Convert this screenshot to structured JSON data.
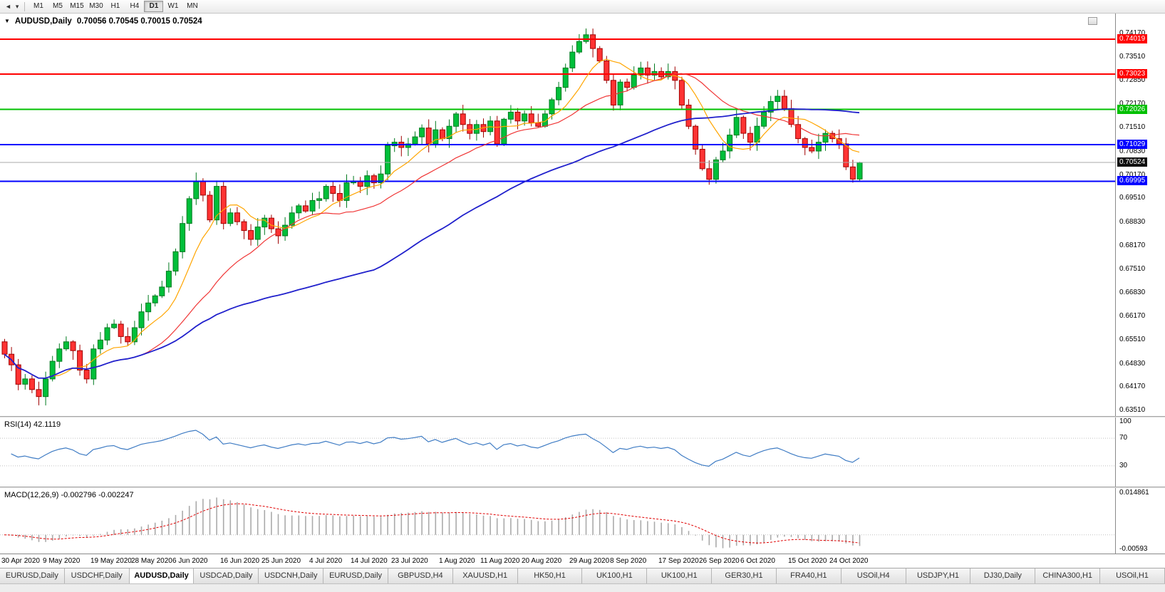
{
  "toolbar": {
    "timeframes": [
      "M1",
      "M5",
      "M15",
      "M30",
      "H1",
      "H4",
      "D1",
      "W1",
      "MN"
    ],
    "active": "D1"
  },
  "icons": {
    "toolbar_back": "◄",
    "toolbar_menu": "▾",
    "symbol_dropdown": "▼"
  },
  "chart": {
    "symbol_title": "AUDUSD,Daily",
    "ohlc_text": "0.70056 0.70545 0.70015 0.70524"
  },
  "chart_data": {
    "type": "candlestick",
    "title": "AUDUSD,Daily",
    "symbol": "AUDUSD",
    "timeframe": "Daily",
    "ohlc_current": {
      "open": 0.70056,
      "high": 0.70545,
      "low": 0.70015,
      "close": 0.70524
    },
    "prev_candle_low": 0.6999,
    "closes": [
      0.651,
      0.648,
      0.6425,
      0.644,
      0.641,
      0.639,
      0.644,
      0.649,
      0.6525,
      0.6545,
      0.652,
      0.6465,
      0.644,
      0.6525,
      0.655,
      0.6585,
      0.6595,
      0.656,
      0.6545,
      0.6585,
      0.663,
      0.6655,
      0.6675,
      0.67,
      0.6745,
      0.68,
      0.688,
      0.695,
      0.7,
      0.696,
      0.689,
      0.6985,
      0.688,
      0.691,
      0.6885,
      0.686,
      0.6835,
      0.687,
      0.6895,
      0.6865,
      0.6845,
      0.6875,
      0.691,
      0.693,
      0.6915,
      0.6945,
      0.695,
      0.6985,
      0.6965,
      0.6945,
      0.6995,
      0.7,
      0.6985,
      0.7015,
      0.6995,
      0.702,
      0.71,
      0.711,
      0.7095,
      0.7105,
      0.7125,
      0.715,
      0.7105,
      0.7145,
      0.712,
      0.7155,
      0.719,
      0.716,
      0.7135,
      0.716,
      0.714,
      0.717,
      0.7105,
      0.7175,
      0.7195,
      0.717,
      0.719,
      0.7165,
      0.7155,
      0.719,
      0.723,
      0.7265,
      0.732,
      0.7365,
      0.7395,
      0.7414,
      0.7375,
      0.734,
      0.7285,
      0.7215,
      0.728,
      0.7265,
      0.73,
      0.732,
      0.73,
      0.731,
      0.7295,
      0.731,
      0.7285,
      0.7215,
      0.7155,
      0.709,
      0.7035,
      0.7005,
      0.706,
      0.7085,
      0.713,
      0.718,
      0.7135,
      0.711,
      0.7155,
      0.7195,
      0.7225,
      0.724,
      0.7205,
      0.716,
      0.712,
      0.7095,
      0.7085,
      0.711,
      0.7135,
      0.712,
      0.7105,
      0.704,
      0.70056,
      0.70524
    ],
    "x_labels": [
      {
        "index": 0,
        "label": "30 Apr 2020"
      },
      {
        "index": 6,
        "label": "9 May 2020"
      },
      {
        "index": 13,
        "label": "19 May 2020"
      },
      {
        "index": 19,
        "label": "28 May 2020"
      },
      {
        "index": 25,
        "label": "6 Jun 2020"
      },
      {
        "index": 32,
        "label": "16 Jun 2020"
      },
      {
        "index": 38,
        "label": "25 Jun 2020"
      },
      {
        "index": 45,
        "label": "4 Jul 2020"
      },
      {
        "index": 51,
        "label": "14 Jul 2020"
      },
      {
        "index": 57,
        "label": "23 Jul 2020"
      },
      {
        "index": 64,
        "label": "1 Aug 2020"
      },
      {
        "index": 70,
        "label": "11 Aug 2020"
      },
      {
        "index": 76,
        "label": "20 Aug 2020"
      },
      {
        "index": 83,
        "label": "29 Aug 2020"
      },
      {
        "index": 89,
        "label": "8 Sep 2020"
      },
      {
        "index": 96,
        "label": "17 Sep 2020"
      },
      {
        "index": 102,
        "label": "26 Sep 2020"
      },
      {
        "index": 108,
        "label": "6 Oct 2020"
      },
      {
        "index": 115,
        "label": "15 Oct 2020"
      },
      {
        "index": 121,
        "label": "24 Oct 2020"
      }
    ],
    "y_ticks": [
      "0.74170",
      "0.73510",
      "0.72850",
      "0.72170",
      "0.71510",
      "0.70830",
      "0.70170",
      "0.69510",
      "0.68830",
      "0.68170",
      "0.67510",
      "0.66830",
      "0.66170",
      "0.65510",
      "0.64830",
      "0.64170",
      "0.63510"
    ],
    "ylim": [
      0.6335,
      0.7474
    ],
    "hlines": [
      {
        "value": 0.74019,
        "label": "0.74019",
        "color": "#FF0000"
      },
      {
        "value": 0.73023,
        "label": "0.73023",
        "color": "#FF0000"
      },
      {
        "value": 0.72026,
        "label": "0.72026",
        "color": "#00C000"
      },
      {
        "value": 0.71029,
        "label": "0.71029",
        "color": "#0000FF"
      },
      {
        "value": 0.69995,
        "label": "0.69995",
        "color": "#0000FF"
      }
    ],
    "current_price": {
      "value": 0.70524,
      "label": "0.70524",
      "color": "#111111"
    },
    "up_color": "#00BF3A",
    "up_border": "#007A1F",
    "down_color": "#FF3333",
    "down_border": "#A00000",
    "moving_averages": [
      {
        "period": 8,
        "color": "#FFA500",
        "width": 1.2
      },
      {
        "period": 20,
        "color": "#F03535",
        "width": 1.2
      },
      {
        "period": 55,
        "color": "#2020CC",
        "width": 1.8
      }
    ],
    "rsi": {
      "label": "RSI(14)",
      "value_text": "42.1119",
      "period": 14,
      "levels": [
        70,
        30
      ],
      "axis_labels": [
        "100",
        "70",
        "30"
      ],
      "line_color": "#3F7CC4",
      "range": [
        0,
        100
      ]
    },
    "macd": {
      "label": "MACD(12,26,9)",
      "value_text": "-0.002796 -0.002247",
      "fast": 12,
      "slow": 26,
      "signal": 9,
      "axis_top": "0.014861",
      "axis_bottom": "-0.00593",
      "hist_color": "#AAAAAA",
      "signal_color": "#E00000"
    }
  },
  "bottom_tabs": [
    "EURUSD,Daily",
    "USDCHF,Daily",
    "AUDUSD,Daily",
    "USDCAD,Daily",
    "USDCNH,Daily",
    "EURUSD,Daily",
    "GBPUSD,H4",
    "XAUUSD,H1",
    "HK50,H1",
    "UK100,H1",
    "UK100,H1",
    "GER30,H1",
    "FRA40,H1",
    "USOil,H4",
    "USDJPY,H1",
    "DJ30,Daily",
    "CHINA300,H1",
    "USOil,H1"
  ],
  "active_tab_index": 2
}
